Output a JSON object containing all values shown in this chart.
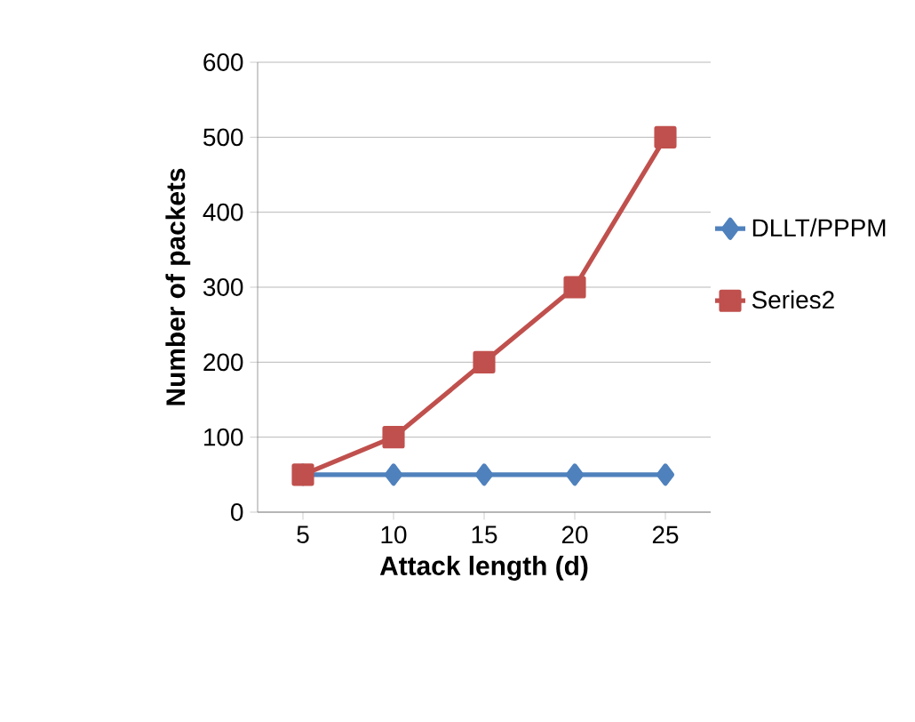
{
  "chart_data": {
    "type": "line",
    "xlabel": "Attack length (d)",
    "ylabel": "Number of packets",
    "categories": [
      "5",
      "10",
      "15",
      "20",
      "25"
    ],
    "series": [
      {
        "name": "DLLT/PPPM",
        "color": "#4f81bd",
        "marker": "diamond",
        "values": [
          50,
          50,
          50,
          50,
          50
        ]
      },
      {
        "name": "Series2",
        "color": "#c0504d",
        "marker": "square",
        "values": [
          50,
          100,
          200,
          300,
          500
        ]
      }
    ],
    "ylim": [
      0,
      600
    ],
    "yticks": [
      0,
      100,
      200,
      300,
      400,
      500,
      600
    ],
    "grid": "y",
    "legend": "right"
  }
}
